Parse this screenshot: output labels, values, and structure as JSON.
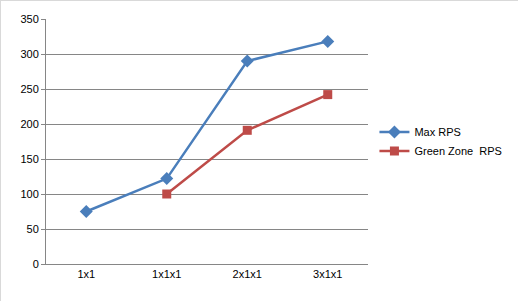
{
  "chart_data": {
    "type": "line",
    "categories": [
      "1x1",
      "1x1x1",
      "2x1x1",
      "3x1x1"
    ],
    "series": [
      {
        "name": "Max RPS",
        "color": "#4a7ebb",
        "marker": "diamond",
        "line_style": "solid",
        "values": [
          75,
          122,
          290,
          318
        ]
      },
      {
        "name": "Green Zone  RPS",
        "color": "#be4b48",
        "marker": "square",
        "line_style": "solid",
        "values": [
          null,
          100,
          191,
          242
        ]
      }
    ],
    "ylim": [
      0,
      350
    ],
    "yticks": [
      0,
      50,
      100,
      150,
      200,
      250,
      300,
      350
    ],
    "grid": true,
    "legend": "right"
  }
}
